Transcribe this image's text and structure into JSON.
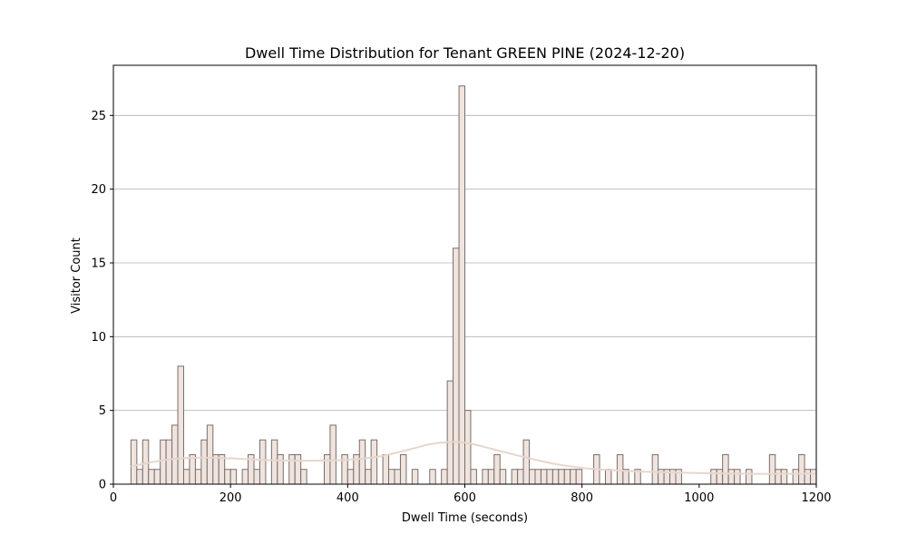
{
  "chart_data": {
    "type": "bar",
    "title": "Dwell Time Distribution for Tenant GREEN PINE (2024-12-20)",
    "xlabel": "Dwell Time (seconds)",
    "ylabel": "Visitor Count",
    "xlim": [
      0,
      1200
    ],
    "ylim": [
      0,
      28.4
    ],
    "xticks": [
      0,
      200,
      400,
      600,
      800,
      1000,
      1200
    ],
    "yticks": [
      0,
      5,
      10,
      15,
      20,
      25
    ],
    "grid": "horizontal",
    "bin_width": 10,
    "bins": [
      {
        "x": 30,
        "count": 3
      },
      {
        "x": 40,
        "count": 1
      },
      {
        "x": 50,
        "count": 3
      },
      {
        "x": 60,
        "count": 1
      },
      {
        "x": 70,
        "count": 1
      },
      {
        "x": 80,
        "count": 3
      },
      {
        "x": 90,
        "count": 3
      },
      {
        "x": 100,
        "count": 4
      },
      {
        "x": 110,
        "count": 8
      },
      {
        "x": 120,
        "count": 1
      },
      {
        "x": 130,
        "count": 2
      },
      {
        "x": 140,
        "count": 1
      },
      {
        "x": 150,
        "count": 3
      },
      {
        "x": 160,
        "count": 4
      },
      {
        "x": 170,
        "count": 2
      },
      {
        "x": 180,
        "count": 2
      },
      {
        "x": 190,
        "count": 1
      },
      {
        "x": 200,
        "count": 1
      },
      {
        "x": 220,
        "count": 1
      },
      {
        "x": 230,
        "count": 2
      },
      {
        "x": 240,
        "count": 1
      },
      {
        "x": 250,
        "count": 3
      },
      {
        "x": 270,
        "count": 3
      },
      {
        "x": 280,
        "count": 2
      },
      {
        "x": 300,
        "count": 2
      },
      {
        "x": 310,
        "count": 2
      },
      {
        "x": 320,
        "count": 1
      },
      {
        "x": 360,
        "count": 2
      },
      {
        "x": 370,
        "count": 4
      },
      {
        "x": 390,
        "count": 2
      },
      {
        "x": 400,
        "count": 1
      },
      {
        "x": 410,
        "count": 2
      },
      {
        "x": 420,
        "count": 3
      },
      {
        "x": 430,
        "count": 1
      },
      {
        "x": 440,
        "count": 3
      },
      {
        "x": 460,
        "count": 2
      },
      {
        "x": 470,
        "count": 1
      },
      {
        "x": 480,
        "count": 1
      },
      {
        "x": 490,
        "count": 2
      },
      {
        "x": 510,
        "count": 1
      },
      {
        "x": 540,
        "count": 1
      },
      {
        "x": 560,
        "count": 1
      },
      {
        "x": 570,
        "count": 7
      },
      {
        "x": 580,
        "count": 16
      },
      {
        "x": 590,
        "count": 27
      },
      {
        "x": 600,
        "count": 5
      },
      {
        "x": 610,
        "count": 1
      },
      {
        "x": 630,
        "count": 1
      },
      {
        "x": 640,
        "count": 1
      },
      {
        "x": 650,
        "count": 2
      },
      {
        "x": 660,
        "count": 1
      },
      {
        "x": 680,
        "count": 1
      },
      {
        "x": 690,
        "count": 1
      },
      {
        "x": 700,
        "count": 3
      },
      {
        "x": 710,
        "count": 1
      },
      {
        "x": 720,
        "count": 1
      },
      {
        "x": 730,
        "count": 1
      },
      {
        "x": 740,
        "count": 1
      },
      {
        "x": 750,
        "count": 1
      },
      {
        "x": 760,
        "count": 1
      },
      {
        "x": 770,
        "count": 1
      },
      {
        "x": 780,
        "count": 1
      },
      {
        "x": 790,
        "count": 1
      },
      {
        "x": 820,
        "count": 2
      },
      {
        "x": 840,
        "count": 1
      },
      {
        "x": 860,
        "count": 2
      },
      {
        "x": 870,
        "count": 1
      },
      {
        "x": 890,
        "count": 1
      },
      {
        "x": 920,
        "count": 2
      },
      {
        "x": 930,
        "count": 1
      },
      {
        "x": 940,
        "count": 1
      },
      {
        "x": 950,
        "count": 1
      },
      {
        "x": 960,
        "count": 1
      },
      {
        "x": 1020,
        "count": 1
      },
      {
        "x": 1030,
        "count": 1
      },
      {
        "x": 1040,
        "count": 2
      },
      {
        "x": 1050,
        "count": 1
      },
      {
        "x": 1060,
        "count": 1
      },
      {
        "x": 1080,
        "count": 1
      },
      {
        "x": 1120,
        "count": 2
      },
      {
        "x": 1130,
        "count": 1
      },
      {
        "x": 1140,
        "count": 1
      },
      {
        "x": 1160,
        "count": 1
      },
      {
        "x": 1170,
        "count": 2
      },
      {
        "x": 1180,
        "count": 1
      },
      {
        "x": 1190,
        "count": 1
      }
    ],
    "kde": {
      "x": [
        30,
        60,
        100,
        150,
        200,
        250,
        300,
        350,
        400,
        450,
        500,
        540,
        570,
        590,
        610,
        650,
        700,
        750,
        800,
        850,
        900,
        950,
        1000,
        1050,
        1100,
        1150,
        1200
      ],
      "y": [
        1.2,
        1.45,
        1.7,
        1.8,
        1.75,
        1.65,
        1.6,
        1.6,
        1.65,
        1.85,
        2.3,
        2.7,
        2.85,
        2.85,
        2.75,
        2.35,
        1.85,
        1.4,
        1.1,
        0.95,
        0.85,
        0.8,
        0.75,
        0.72,
        0.7,
        0.7,
        0.72
      ]
    },
    "colors": {
      "bar_fill": "#f0e4df",
      "bar_edge": "#7a6e6a",
      "kde_line": "#e8d5cc",
      "grid": "#b0b0b0",
      "axis": "#000000"
    }
  }
}
